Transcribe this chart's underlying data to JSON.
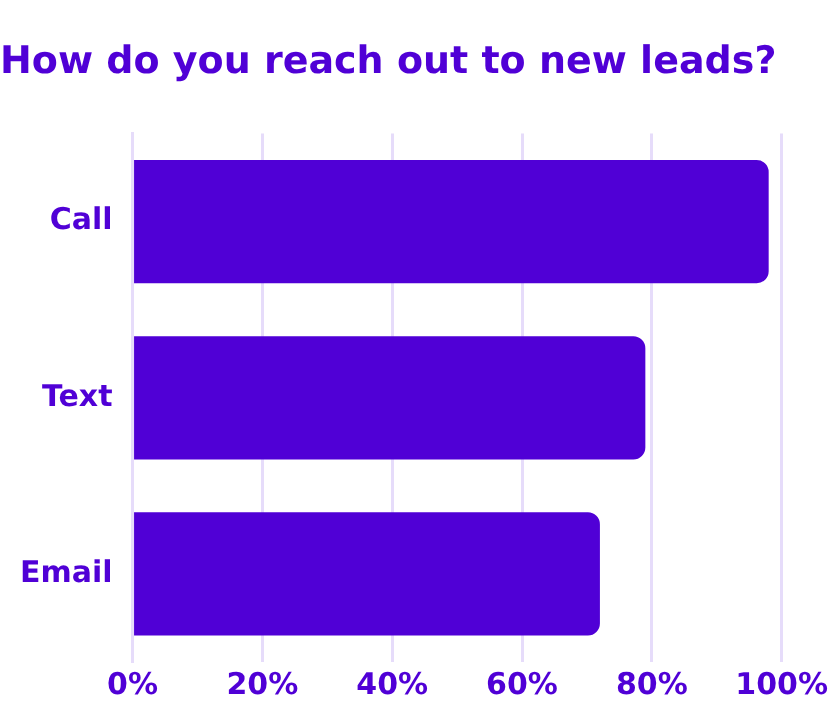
{
  "chart_data": {
    "type": "bar",
    "orientation": "horizontal",
    "title": "How do you reach out to new leads?",
    "categories": [
      "Call",
      "Text",
      "Email"
    ],
    "values": [
      98,
      79,
      72
    ],
    "color": "#5000d6",
    "xlim": [
      0,
      100
    ],
    "xticks": [
      {
        "value": 0,
        "label": "0%"
      },
      {
        "value": 20,
        "label": "20%"
      },
      {
        "value": 40,
        "label": "40%"
      },
      {
        "value": 60,
        "label": "60%"
      },
      {
        "value": 80,
        "label": "80%"
      },
      {
        "value": 100,
        "label": "100%"
      }
    ],
    "grid": "x"
  }
}
